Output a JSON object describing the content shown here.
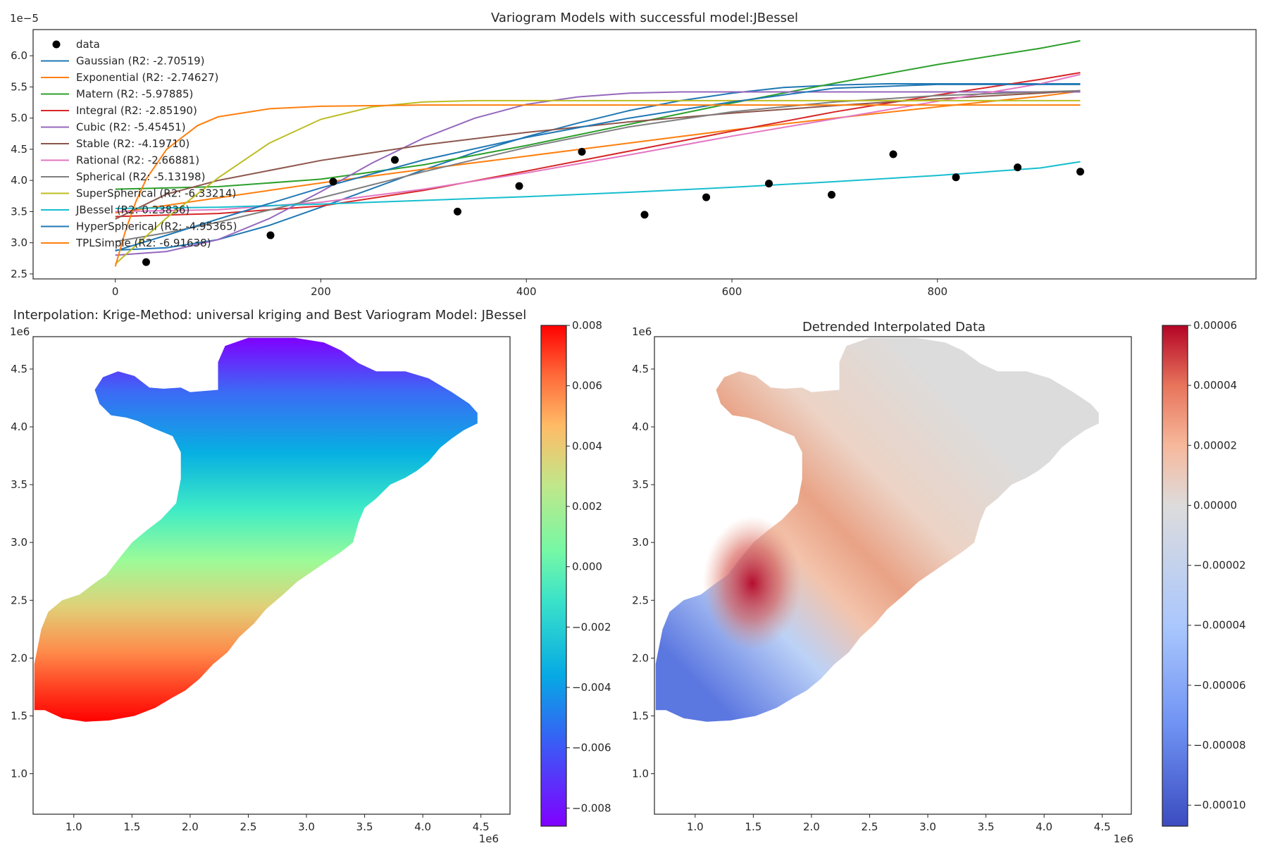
{
  "chart_data": [
    {
      "type": "line",
      "title": "Variogram Models with successful model:JBessel",
      "xlabel": "",
      "ylabel": "",
      "y_offset_label": "1e−5",
      "xlim": [
        -80,
        1110
      ],
      "ylim": [
        2.42,
        6.42
      ],
      "xticks": [
        0,
        200,
        400,
        600,
        800
      ],
      "yticks": [
        2.5,
        3.0,
        3.5,
        4.0,
        4.5,
        5.0,
        5.5,
        6.0
      ],
      "ytick_labels": [
        "2.5",
        "3.0",
        "3.5",
        "4.0",
        "4.5",
        "5.0",
        "5.5",
        "6.0"
      ],
      "grid": false,
      "legend_position": "upper-left",
      "data_points": {
        "name": "data",
        "x": [
          30,
          151,
          212,
          272,
          333,
          393,
          454,
          515,
          575,
          636,
          697,
          757,
          818,
          878,
          939
        ],
        "y": [
          2.69,
          3.12,
          3.98,
          4.33,
          3.5,
          3.91,
          4.46,
          3.45,
          3.73,
          3.95,
          3.77,
          4.42,
          4.05,
          4.21,
          4.14
        ]
      },
      "series": [
        {
          "name": "Gaussian (R2: -2.70519)",
          "color": "#1f77b4",
          "x": [
            0,
            50,
            100,
            150,
            200,
            250,
            300,
            350,
            400,
            450,
            500,
            550,
            600,
            650,
            700,
            750,
            800,
            850,
            900,
            939
          ],
          "y": [
            2.88,
            2.92,
            3.05,
            3.28,
            3.57,
            3.87,
            4.17,
            4.45,
            4.7,
            4.92,
            5.12,
            5.28,
            5.4,
            5.49,
            5.53,
            5.55,
            5.55,
            5.55,
            5.55,
            5.55
          ]
        },
        {
          "name": "Exponential (R2: -2.74627)",
          "color": "#ff7f0e",
          "x": [
            0,
            50,
            100,
            150,
            200,
            300,
            400,
            500,
            600,
            700,
            800,
            900,
            939
          ],
          "y": [
            3.48,
            3.6,
            3.72,
            3.84,
            3.96,
            4.18,
            4.39,
            4.6,
            4.81,
            5.0,
            5.18,
            5.35,
            5.43
          ]
        },
        {
          "name": "Matern (R2: -5.97885)",
          "color": "#2ca02c",
          "x": [
            0,
            100,
            200,
            300,
            400,
            500,
            600,
            700,
            800,
            900,
            939
          ],
          "y": [
            3.86,
            3.9,
            4.02,
            4.25,
            4.56,
            4.9,
            5.24,
            5.56,
            5.86,
            6.12,
            6.24
          ]
        },
        {
          "name": "Integral (R2: -2.85190)",
          "color": "#d62728",
          "x": [
            0,
            100,
            200,
            300,
            400,
            500,
            600,
            700,
            800,
            900,
            939
          ],
          "y": [
            3.42,
            3.47,
            3.59,
            3.84,
            4.15,
            4.47,
            4.79,
            5.1,
            5.37,
            5.62,
            5.73
          ]
        },
        {
          "name": "Cubic (R2: -5.45451)",
          "color": "#9467bd",
          "x": [
            0,
            50,
            100,
            150,
            200,
            250,
            300,
            350,
            400,
            450,
            500,
            550,
            600,
            700,
            800,
            939
          ],
          "y": [
            2.8,
            2.86,
            3.05,
            3.39,
            3.82,
            4.28,
            4.68,
            5.0,
            5.22,
            5.34,
            5.4,
            5.42,
            5.42,
            5.42,
            5.42,
            5.42
          ]
        },
        {
          "name": "Stable (R2: -4.19710)",
          "color": "#8c564b",
          "x": [
            0,
            50,
            100,
            200,
            300,
            400,
            500,
            600,
            700,
            800,
            900,
            939
          ],
          "y": [
            3.38,
            3.78,
            4.0,
            4.32,
            4.57,
            4.77,
            4.94,
            5.08,
            5.2,
            5.31,
            5.4,
            5.44
          ]
        },
        {
          "name": "Rational (R2: -2.66881)",
          "color": "#e377c2",
          "x": [
            0,
            100,
            200,
            300,
            400,
            500,
            600,
            700,
            800,
            900,
            939
          ],
          "y": [
            3.5,
            3.53,
            3.65,
            3.86,
            4.12,
            4.41,
            4.71,
            4.99,
            5.27,
            5.55,
            5.7
          ]
        },
        {
          "name": "Spherical (R2: -5.13198)",
          "color": "#7f7f7f",
          "x": [
            0,
            50,
            100,
            200,
            300,
            400,
            500,
            600,
            700,
            800,
            900,
            939
          ],
          "y": [
            3.02,
            3.16,
            3.33,
            3.72,
            4.14,
            4.53,
            4.86,
            5.1,
            5.26,
            5.36,
            5.42,
            5.44
          ]
        },
        {
          "name": "SuperSpherical (R2: -6.33214)",
          "color": "#bcbd22",
          "x": [
            0,
            50,
            100,
            150,
            200,
            250,
            300,
            350,
            400,
            500,
            600,
            700,
            800,
            939
          ],
          "y": [
            2.66,
            3.4,
            4.04,
            4.6,
            4.98,
            5.18,
            5.26,
            5.28,
            5.28,
            5.28,
            5.28,
            5.28,
            5.28,
            5.28
          ]
        },
        {
          "name": "JBessel (R2: 0.23836)",
          "color": "#17becf",
          "x": [
            0,
            100,
            200,
            300,
            400,
            500,
            600,
            700,
            800,
            900,
            939
          ],
          "y": [
            3.55,
            3.57,
            3.62,
            3.68,
            3.74,
            3.81,
            3.89,
            3.98,
            4.08,
            4.2,
            4.3
          ]
        },
        {
          "name": "HyperSpherical (R2: -4.95365)",
          "color": "#1f77b4",
          "x": [
            0,
            50,
            100,
            200,
            300,
            400,
            500,
            600,
            700,
            800,
            900,
            939
          ],
          "y": [
            2.87,
            3.12,
            3.38,
            3.88,
            4.33,
            4.69,
            5.0,
            5.26,
            5.48,
            5.54,
            5.54,
            5.54
          ]
        },
        {
          "name": "TPLSimple (R2: -6.91638)",
          "color": "#ff7f0e",
          "x": [
            0,
            10,
            20,
            30,
            50,
            80,
            100,
            150,
            200,
            300,
            400,
            600,
            800,
            939
          ],
          "y": [
            2.62,
            3.2,
            3.66,
            4.02,
            4.5,
            4.88,
            5.02,
            5.15,
            5.19,
            5.21,
            5.21,
            5.21,
            5.21,
            5.21
          ]
        }
      ]
    },
    {
      "type": "heatmap",
      "title": "Interpolation: Krige-Method: universal kriging and Best Variogram Model: JBessel",
      "x_offset_label": "1e6",
      "y_offset_label": "1e6",
      "xlim": [
        0.65,
        4.75
      ],
      "ylim": [
        0.65,
        4.78
      ],
      "xticks": [
        1.0,
        1.5,
        2.0,
        2.5,
        3.0,
        3.5,
        4.0,
        4.5
      ],
      "yticks": [
        1.0,
        1.5,
        2.0,
        2.5,
        3.0,
        3.5,
        4.0,
        4.5
      ],
      "colormap": "rainbow",
      "colorbar_range": [
        -0.0086,
        0.008
      ],
      "colorbar_ticks": [
        0.008,
        0.006,
        0.004,
        0.002,
        0.0,
        -0.002,
        -0.004,
        -0.006,
        -0.008
      ],
      "colorbar_tick_labels": [
        "0.008",
        "0.006",
        "0.004",
        "0.002",
        "0.000",
        "−0.002",
        "−0.004",
        "−0.006",
        "−0.008"
      ],
      "value_gradient_y": [
        [
          1.45,
          0.008
        ],
        [
          4.78,
          -0.0086
        ]
      ]
    },
    {
      "type": "heatmap",
      "title": "Detrended Interpolated Data",
      "x_offset_label": "1e6",
      "y_offset_label": "1e6",
      "xlim": [
        0.65,
        4.75
      ],
      "ylim": [
        0.65,
        4.78
      ],
      "xticks": [
        1.0,
        1.5,
        2.0,
        2.5,
        3.0,
        3.5,
        4.0,
        4.5
      ],
      "yticks": [
        1.0,
        1.5,
        2.0,
        2.5,
        3.0,
        3.5,
        4.0,
        4.5
      ],
      "colormap": "coolwarm",
      "colorbar_range": [
        -0.000107,
        6e-05
      ],
      "colorbar_ticks": [
        6e-05,
        4e-05,
        2e-05,
        0.0,
        -2e-05,
        -4e-05,
        -6e-05,
        -8e-05,
        -0.0001
      ],
      "colorbar_tick_labels": [
        "0.00006",
        "0.00004",
        "0.00002",
        "0.00000",
        "−0.00002",
        "−0.00004",
        "−0.00006",
        "−0.00008",
        "−0.00010"
      ]
    }
  ],
  "region_outline": [
    [
      0.65,
      1.95
    ],
    [
      0.73,
      2.2
    ],
    [
      0.8,
      2.4
    ],
    [
      0.9,
      2.5
    ],
    [
      1.05,
      2.58
    ],
    [
      1.25,
      2.68
    ],
    [
      1.35,
      2.8
    ],
    [
      1.5,
      2.96
    ],
    [
      1.72,
      3.08
    ],
    [
      1.8,
      3.28
    ],
    [
      1.92,
      3.36
    ],
    [
      1.93,
      3.62
    ],
    [
      1.93,
      3.86
    ],
    [
      1.88,
      4.0
    ],
    [
      1.72,
      4.08
    ],
    [
      1.68,
      4.28
    ],
    [
      1.55,
      4.44
    ],
    [
      1.4,
      4.48
    ],
    [
      1.25,
      4.47
    ],
    [
      1.18,
      4.39
    ],
    [
      1.15,
      4.28
    ],
    [
      1.27,
      4.16
    ],
    [
      1.4,
      4.1
    ],
    [
      1.55,
      4.08
    ],
    [
      1.65,
      4.0
    ],
    [
      1.75,
      3.86
    ],
    [
      1.79,
      3.7
    ],
    [
      1.92,
      3.55
    ],
    [
      1.92,
      3.38
    ],
    [
      1.88,
      3.22
    ],
    [
      1.97,
      3.11
    ],
    [
      2.08,
      3.0
    ],
    [
      2.17,
      2.92
    ],
    [
      2.32,
      2.83
    ],
    [
      2.45,
      2.72
    ],
    [
      2.56,
      2.6
    ],
    [
      2.66,
      2.5
    ],
    [
      2.79,
      2.42
    ],
    [
      2.88,
      2.3
    ],
    [
      3.0,
      2.18
    ],
    [
      3.12,
      2.1
    ],
    [
      3.25,
      2.03
    ],
    [
      3.35,
      1.97
    ],
    [
      3.48,
      1.92
    ],
    [
      3.6,
      1.92
    ],
    [
      3.7,
      1.98
    ],
    [
      3.8,
      2.05
    ],
    [
      3.9,
      2.2
    ],
    [
      3.94,
      2.38
    ]
  ]
}
